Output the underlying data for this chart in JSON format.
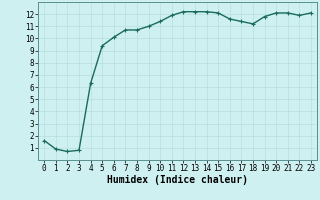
{
  "x": [
    0,
    1,
    2,
    3,
    4,
    5,
    6,
    7,
    8,
    9,
    10,
    11,
    12,
    13,
    14,
    15,
    16,
    17,
    18,
    19,
    20,
    21,
    22,
    23
  ],
  "y": [
    1.6,
    0.9,
    0.7,
    0.8,
    6.3,
    9.4,
    10.1,
    10.7,
    10.7,
    11.0,
    11.4,
    11.9,
    12.2,
    12.2,
    12.2,
    12.1,
    11.6,
    11.4,
    11.2,
    11.8,
    12.1,
    12.1,
    11.9,
    12.1
  ],
  "line_color": "#1a6b5e",
  "marker": "+",
  "marker_size": 3,
  "bg_color": "#cff0f0",
  "grid_color": "#b8dede",
  "xlabel": "Humidex (Indice chaleur)",
  "xlim": [
    -0.5,
    23.5
  ],
  "ylim": [
    0,
    13
  ],
  "xticks": [
    0,
    1,
    2,
    3,
    4,
    5,
    6,
    7,
    8,
    9,
    10,
    11,
    12,
    13,
    14,
    15,
    16,
    17,
    18,
    19,
    20,
    21,
    22,
    23
  ],
  "yticks": [
    1,
    2,
    3,
    4,
    5,
    6,
    7,
    8,
    9,
    10,
    11,
    12
  ],
  "tick_fontsize": 5.5,
  "xlabel_fontsize": 7,
  "line_width": 1.0
}
